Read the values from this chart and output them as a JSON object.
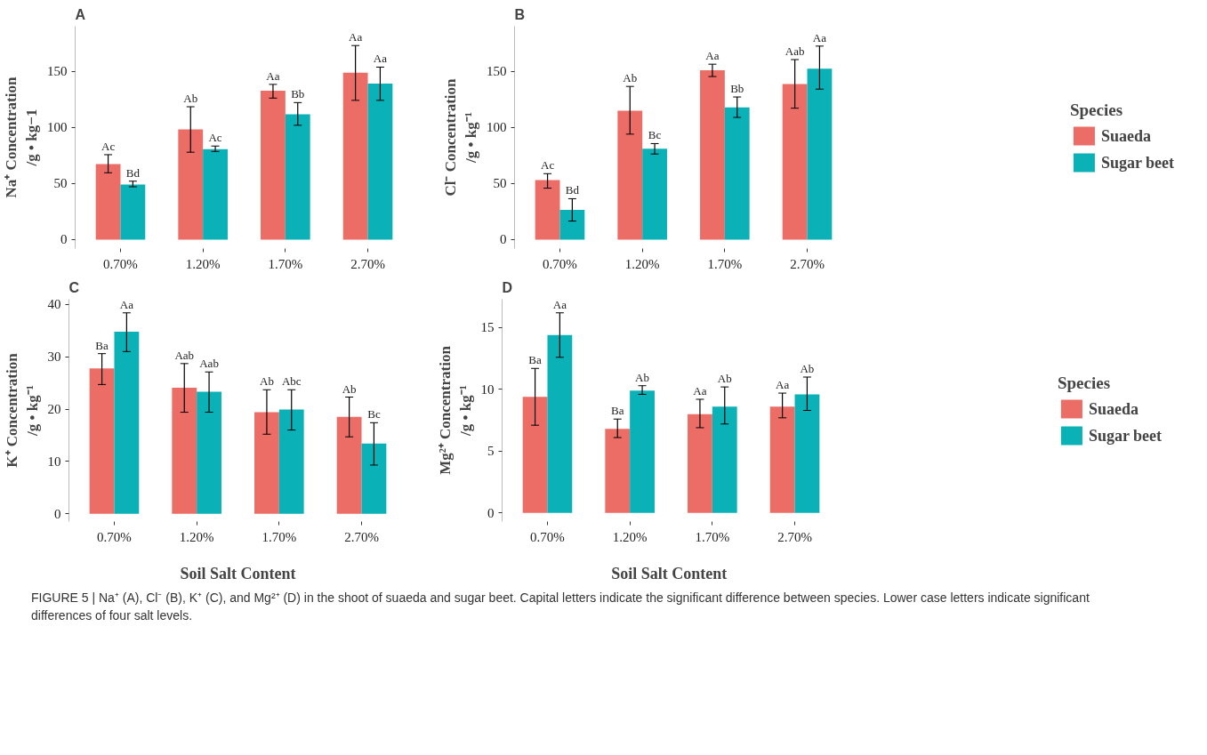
{
  "chart_data": [
    {
      "type": "bar",
      "title": "A",
      "ylabel": "Na⁺ Concentration\n/g • kg−1",
      "categories": [
        "0.70%",
        "1.20%",
        "1.70%",
        "2.70%"
      ],
      "ylim": [
        -8,
        190
      ],
      "yticks": [
        0,
        50,
        100,
        150
      ],
      "grid": false,
      "series": [
        {
          "color": "#ec6c66",
          "values": [
            67.2,
            98.2,
            132.5,
            148.6
          ],
          "errors": [
            [
              59.5,
              75.6
            ],
            [
              77.8,
              118.3
            ],
            [
              126,
              138.2
            ],
            [
              124,
              172.8
            ]
          ],
          "value_labels": [
            "Ac",
            "Ab",
            "Aa",
            "Aa"
          ]
        },
        {
          "color": "#0ab1b6",
          "values": [
            49,
            80.6,
            111.6,
            139
          ],
          "errors": [
            [
              47,
              52
            ],
            [
              78.5,
              83.3
            ],
            [
              101.8,
              122
            ],
            [
              124,
              153.6
            ]
          ],
          "value_labels": [
            "Bd",
            "Ac",
            "Bb",
            "Aa"
          ]
        }
      ]
    },
    {
      "type": "bar",
      "title": "B",
      "ylabel": "Cl⁻ Concentration\n/g • kg⁻¹",
      "categories": [
        "0.70%",
        "1.20%",
        "1.70%",
        "2.70%"
      ],
      "ylim": [
        -8,
        190
      ],
      "yticks": [
        0,
        50,
        100,
        150
      ],
      "legend": "right",
      "legend_title": "Species",
      "grid": false,
      "series": [
        {
          "name": "Suaeda",
          "color": "#ec6c66",
          "values": [
            53,
            114.8,
            150.7,
            138.5
          ],
          "errors": [
            [
              45.8,
              58.7
            ],
            [
              93.9,
              136.4
            ],
            [
              145.2,
              156.2
            ],
            [
              117,
              160.3
            ]
          ],
          "value_labels": [
            "Ac",
            "Ab",
            "Aa",
            "Aab"
          ]
        },
        {
          "name": "Sugar beet",
          "color": "#0ab1b6",
          "values": [
            26.4,
            81,
            117.7,
            152.2
          ],
          "errors": [
            [
              16.5,
              36.4
            ],
            [
              76.2,
              85.5
            ],
            [
              108.8,
              127
            ],
            [
              134,
              172.3
            ]
          ],
          "value_labels": [
            "Bd",
            "Bc",
            "Bb",
            "Aa"
          ]
        }
      ]
    },
    {
      "type": "bar",
      "title": "C",
      "ylabel": "K⁺ Concentration\n/g • kg⁻¹",
      "xlabel": "Soil Salt Content",
      "categories": [
        "0.70%",
        "1.20%",
        "1.70%",
        "2.70%"
      ],
      "ylim": [
        -1.5,
        41
      ],
      "yticks": [
        0,
        10,
        20,
        30,
        40
      ],
      "grid": false,
      "series": [
        {
          "color": "#ec6c66",
          "values": [
            27.8,
            24.1,
            19.4,
            18.5
          ],
          "errors": [
            [
              24.7,
              30.6
            ],
            [
              19.4,
              28.7
            ],
            [
              15.2,
              23.7
            ],
            [
              14.7,
              22.3
            ]
          ],
          "value_labels": [
            "Ba",
            "Aab",
            "Ab",
            "Ab"
          ]
        },
        {
          "color": "#0ab1b6",
          "values": [
            34.8,
            23.3,
            19.9,
            13.4
          ],
          "errors": [
            [
              31,
              38.4
            ],
            [
              19.4,
              27.1
            ],
            [
              16,
              23.7
            ],
            [
              9.3,
              17.4
            ]
          ],
          "value_labels": [
            "Aa",
            "Aab",
            "Abc",
            "Bc"
          ]
        }
      ]
    },
    {
      "type": "bar",
      "title": "D",
      "ylabel": "Mg²⁺ Concentration\n/g • kg⁻¹",
      "xlabel": "Soil  Salt Content",
      "categories": [
        "0.70%",
        "1.20%",
        "1.70%",
        "2.70%"
      ],
      "ylim": [
        -0.7,
        17.3
      ],
      "yticks": [
        0,
        5,
        10,
        15
      ],
      "legend": "right",
      "legend_title": "Species",
      "grid": false,
      "series": [
        {
          "name": "Suaeda",
          "color": "#ec6c66",
          "values": [
            9.4,
            6.8,
            8.0,
            8.6
          ],
          "errors": [
            [
              7.1,
              11.7
            ],
            [
              6.1,
              7.6
            ],
            [
              6.9,
              9.2
            ],
            [
              7.7,
              9.7
            ]
          ],
          "value_labels": [
            "Ba",
            "Ba",
            "Aa",
            "Aa"
          ]
        },
        {
          "name": "Sugar beet",
          "color": "#0ab1b6",
          "values": [
            14.4,
            9.9,
            8.6,
            9.6
          ],
          "errors": [
            [
              12.6,
              16.2
            ],
            [
              9.6,
              10.3
            ],
            [
              7.2,
              10.2
            ],
            [
              8.3,
              11.0
            ]
          ],
          "value_labels": [
            "Aa",
            "Ab",
            "Ab",
            "Ab"
          ]
        }
      ],
      "annotations": [
        "FIGURE 5 | Na⁺ (A), Cl⁻ (B), K⁺ (C), and Mg²⁺ (D) in the shoot of suaeda and sugar beet. Capital letters indicate the significant difference between species. Lower case letters indicate significant differences of four salt levels."
      ]
    }
  ]
}
